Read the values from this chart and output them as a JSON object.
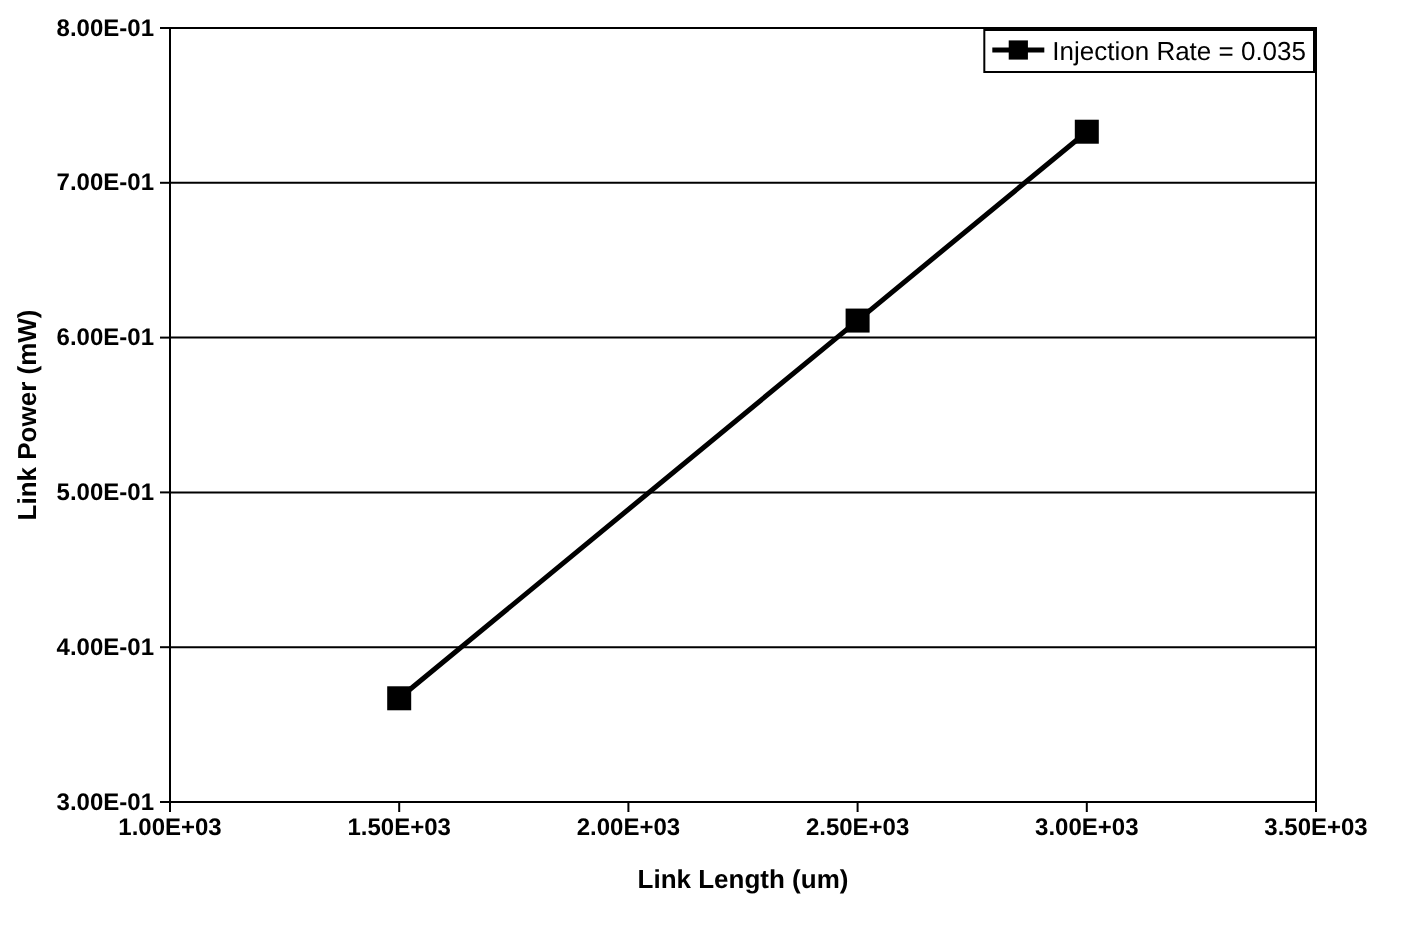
{
  "chart_data": {
    "type": "line",
    "xlabel": "Link Length (um)",
    "ylabel": "Link Power (mW)",
    "x": [
      1500,
      2500,
      3000
    ],
    "series": [
      {
        "name": "Injection Rate = 0.035",
        "color": "#000000",
        "values": [
          0.367,
          0.611,
          0.733
        ]
      }
    ],
    "xlim": [
      1000,
      3500
    ],
    "xticks": [
      {
        "value": 1000,
        "label": "1.00E+03"
      },
      {
        "value": 1500,
        "label": "1.50E+03"
      },
      {
        "value": 2000,
        "label": "2.00E+03"
      },
      {
        "value": 2500,
        "label": "2.50E+03"
      },
      {
        "value": 3000,
        "label": "3.00E+03"
      },
      {
        "value": 3500,
        "label": "3.50E+03"
      }
    ],
    "ylim": [
      0.3,
      0.8
    ],
    "yticks": [
      {
        "value": 0.3,
        "label": "3.00E-01"
      },
      {
        "value": 0.4,
        "label": "4.00E-01"
      },
      {
        "value": 0.5,
        "label": "5.00E-01"
      },
      {
        "value": 0.6,
        "label": "6.00E-01"
      },
      {
        "value": 0.7,
        "label": "7.00E-01"
      },
      {
        "value": 0.8,
        "label": "8.00E-01"
      }
    ],
    "grid": "y",
    "legend": "top right",
    "marker": "square",
    "line_style": "solid"
  }
}
